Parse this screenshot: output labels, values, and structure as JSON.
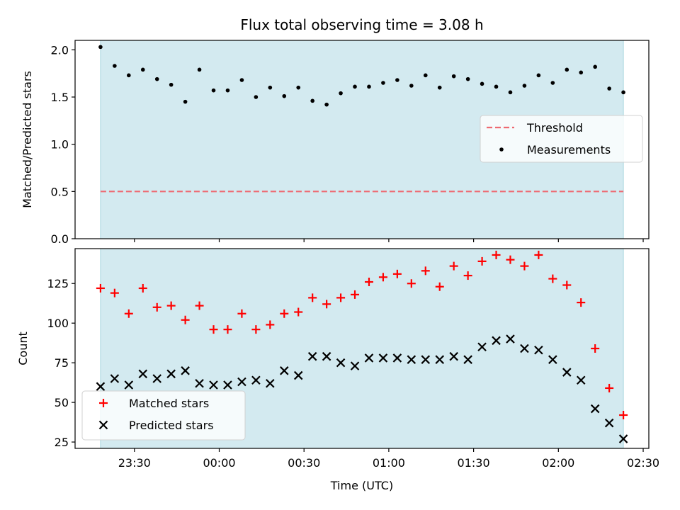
{
  "chart_data": {
    "title": "Flux total observing time = 3.08 h",
    "xlabel": "Time (UTC)",
    "x_tick_labels": [
      "23:30",
      "00:00",
      "00:30",
      "01:00",
      "01:30",
      "02:00",
      "02:30"
    ],
    "x_tick_minutes": [
      -30,
      0,
      30,
      60,
      90,
      120,
      150
    ],
    "xlim": [
      -51,
      152
    ],
    "observing_window": [
      -42,
      143
    ],
    "window_color": "#d3eaf0",
    "panels": [
      {
        "type": "scatter",
        "ylabel": "Matched/Predicted stars",
        "ylim": [
          0,
          2.1
        ],
        "y_ticks": [
          0.0,
          0.5,
          1.0,
          1.5,
          2.0
        ],
        "y_tick_labels": [
          "0.0",
          "0.5",
          "1.0",
          "1.5",
          "2.0"
        ],
        "legend_position": "center-right",
        "legend": [
          {
            "label": "Threshold",
            "style": "dashed-line",
            "color": "#ee6a72"
          },
          {
            "label": "Measurements",
            "style": "dot",
            "color": "#000000"
          }
        ],
        "threshold": 0.5,
        "series": [
          {
            "name": "Measurements",
            "color": "#000000",
            "x": [
              -42,
              -37,
              -32,
              -27,
              -22,
              -17,
              -12,
              -7,
              -2,
              3,
              8,
              13,
              18,
              23,
              28,
              33,
              38,
              43,
              48,
              53,
              58,
              63,
              68,
              73,
              78,
              83,
              88,
              93,
              98,
              103,
              108,
              113,
              118,
              123,
              128,
              133,
              138,
              143
            ],
            "y": [
              2.03,
              1.83,
              1.73,
              1.79,
              1.69,
              1.63,
              1.45,
              1.79,
              1.57,
              1.57,
              1.68,
              1.5,
              1.6,
              1.51,
              1.6,
              1.46,
              1.42,
              1.54,
              1.61,
              1.61,
              1.65,
              1.68,
              1.62,
              1.73,
              1.6,
              1.72,
              1.69,
              1.64,
              1.61,
              1.55,
              1.62,
              1.73,
              1.65,
              1.79,
              1.76,
              1.82,
              1.59,
              1.55
            ]
          }
        ]
      },
      {
        "type": "scatter",
        "ylabel": "Count",
        "ylim": [
          21,
          147
        ],
        "y_ticks": [
          25,
          50,
          75,
          100,
          125
        ],
        "y_tick_labels": [
          "25",
          "50",
          "75",
          "100",
          "125"
        ],
        "legend_position": "lower-left",
        "legend": [
          {
            "label": "Matched stars",
            "style": "plus",
            "color": "#ff0000"
          },
          {
            "label": "Predicted stars",
            "style": "cross",
            "color": "#000000"
          }
        ],
        "series": [
          {
            "name": "Matched stars",
            "marker": "plus",
            "color": "#ff0000",
            "x": [
              -42,
              -37,
              -32,
              -27,
              -22,
              -17,
              -12,
              -7,
              -2,
              3,
              8,
              13,
              18,
              23,
              28,
              33,
              38,
              43,
              48,
              53,
              58,
              63,
              68,
              73,
              78,
              83,
              88,
              93,
              98,
              103,
              108,
              113,
              118,
              123,
              128,
              133,
              138,
              143
            ],
            "y": [
              122,
              119,
              106,
              122,
              110,
              111,
              102,
              111,
              96,
              96,
              106,
              96,
              99,
              106,
              107,
              116,
              112,
              116,
              118,
              126,
              129,
              131,
              125,
              133,
              123,
              136,
              130,
              139,
              143,
              140,
              136,
              143,
              128,
              124,
              113,
              84,
              59,
              42
            ]
          },
          {
            "name": "Predicted stars",
            "marker": "cross",
            "color": "#000000",
            "x": [
              -42,
              -37,
              -32,
              -27,
              -22,
              -17,
              -12,
              -7,
              -2,
              3,
              8,
              13,
              18,
              23,
              28,
              33,
              38,
              43,
              48,
              53,
              58,
              63,
              68,
              73,
              78,
              83,
              88,
              93,
              98,
              103,
              108,
              113,
              118,
              123,
              128,
              133,
              138,
              143
            ],
            "y": [
              60,
              65,
              61,
              68,
              65,
              68,
              70,
              62,
              61,
              61,
              63,
              64,
              62,
              70,
              67,
              79,
              79,
              75,
              73,
              78,
              78,
              78,
              77,
              77,
              77,
              79,
              77,
              85,
              89,
              90,
              84,
              83,
              77,
              69,
              64,
              46,
              37,
              27
            ]
          }
        ]
      }
    ]
  }
}
